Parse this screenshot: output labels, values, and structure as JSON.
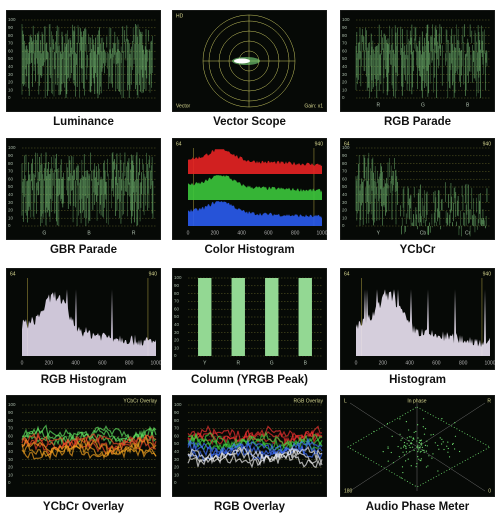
{
  "panels": [
    {
      "caption": "Luminance",
      "type": "waveform",
      "colors": [
        "#8fe88f"
      ],
      "scale": [
        100,
        90,
        80,
        70,
        60,
        50,
        40,
        30,
        20,
        10,
        0
      ]
    },
    {
      "caption": "Vector Scope",
      "type": "vector",
      "labels": {
        "top_left": "HD",
        "bottom_left": "Vector",
        "bottom_right": "Gain: x1"
      }
    },
    {
      "caption": "RGB Parade",
      "type": "waveform",
      "colors": [
        "#8fe88f"
      ],
      "channels": [
        "R",
        "G",
        "B"
      ],
      "scale": [
        100,
        90,
        80,
        70,
        60,
        50,
        40,
        30,
        20,
        10,
        0
      ]
    },
    {
      "caption": "GBR Parade",
      "type": "waveform",
      "colors": [
        "#8fe88f"
      ],
      "channels": [
        "G",
        "B",
        "R"
      ],
      "scale": [
        100,
        90,
        80,
        70,
        60,
        50,
        40,
        30,
        20,
        10,
        0
      ]
    },
    {
      "caption": "Color Histogram",
      "type": "histogram",
      "colors": [
        "#e82424",
        "#3cc83c",
        "#2a5cf0"
      ],
      "labels": {
        "top_left": "64",
        "top_right": "940"
      },
      "xticks": [
        0,
        200,
        400,
        600,
        800,
        1000
      ]
    },
    {
      "caption": "YCbCr",
      "type": "waveform",
      "colors": [
        "#8fe88f"
      ],
      "channels": [
        "Y",
        "Cb",
        "Cr"
      ],
      "labels": {
        "top_left": "64",
        "top_right": "940"
      },
      "scale": [
        100,
        90,
        80,
        70,
        60,
        50,
        40,
        30,
        20,
        10,
        0
      ]
    },
    {
      "caption": "RGB Histogram",
      "type": "histogram",
      "colors": [
        "#e4dcef"
      ],
      "labels": {
        "top_left": "64",
        "top_right": "940"
      },
      "xticks": [
        0,
        200,
        400,
        600,
        800,
        1000
      ]
    },
    {
      "caption": "Column (YRGB Peak)",
      "type": "column",
      "colors": [
        "#93d893"
      ],
      "channels": [
        "Y",
        "R",
        "G",
        "B"
      ],
      "scale": [
        100,
        90,
        80,
        70,
        60,
        50,
        40,
        30,
        20,
        10,
        0
      ]
    },
    {
      "caption": "Histogram",
      "type": "histogram",
      "colors": [
        "#ece4f4"
      ],
      "labels": {
        "top_left": "64",
        "top_right": "940"
      },
      "xticks": [
        0,
        200,
        400,
        600,
        800,
        1000
      ]
    },
    {
      "caption": "YCbCr Overlay",
      "type": "overlay",
      "colors": [
        "#5fe05f",
        "#f04a2a",
        "#f0a020"
      ],
      "labels": {
        "top_right": "YCbCr Overlay"
      },
      "scale": [
        100,
        90,
        80,
        70,
        60,
        50,
        40,
        30,
        20,
        10,
        0
      ]
    },
    {
      "caption": "RGB Overlay",
      "type": "overlay",
      "colors": [
        "#f03030",
        "#40d040",
        "#4070ff",
        "#f0f0f0"
      ],
      "labels": {
        "top_right": "RGB Overlay"
      },
      "scale": [
        100,
        90,
        80,
        70,
        60,
        50,
        40,
        30,
        20,
        10,
        0
      ]
    },
    {
      "caption": "Audio Phase Meter",
      "type": "phase",
      "colors": [
        "#6fe06f"
      ],
      "labels": {
        "top_left": "L",
        "top_center": "In phase",
        "top_right": "R",
        "bottom_left": "180",
        "bottom_right": "0"
      }
    }
  ]
}
